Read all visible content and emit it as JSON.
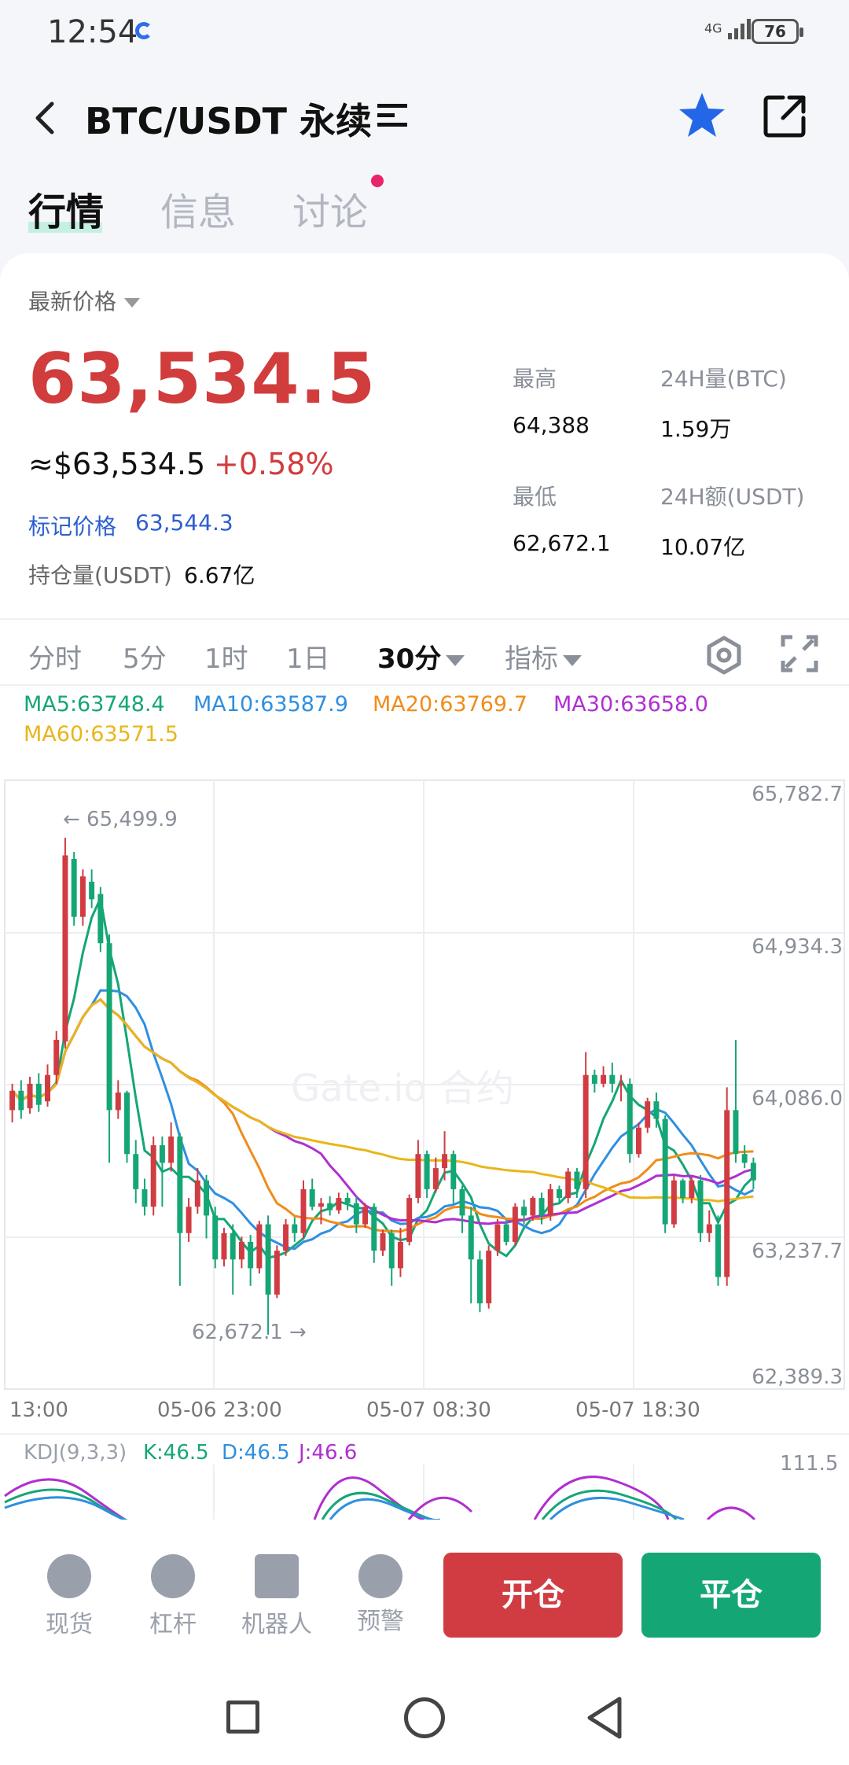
{
  "status_bar": {
    "time": "12:54",
    "network": "4G",
    "battery": "76"
  },
  "header": {
    "title": "BTC/USDT 永续",
    "favorited": true
  },
  "tabs": [
    {
      "label": "行情",
      "active": true
    },
    {
      "label": "信息",
      "active": false
    },
    {
      "label": "讨论",
      "active": false,
      "has_dot": true
    }
  ],
  "price": {
    "label": "最新价格",
    "last": "63,534.5",
    "usd": "≈$63,534.5",
    "change": "+0.58%",
    "mark_label": "标记价格",
    "mark_value": "63,544.3",
    "open_interest_label": "持仓量(USDT)",
    "open_interest_value": "6.67亿"
  },
  "stats": {
    "high_label": "最高",
    "high_value": "64,388",
    "vol_btc_label": "24H量(BTC)",
    "vol_btc_value": "1.59万",
    "low_label": "最低",
    "low_value": "62,672.1",
    "vol_usdt_label": "24H额(USDT)",
    "vol_usdt_value": "10.07亿"
  },
  "intervals": [
    {
      "label": "分时",
      "active": false
    },
    {
      "label": "5分",
      "active": false
    },
    {
      "label": "1时",
      "active": false
    },
    {
      "label": "1日",
      "active": false
    },
    {
      "label": "30分",
      "active": true
    },
    {
      "label": "指标",
      "active": false
    }
  ],
  "ma": {
    "ma5": "MA5:63748.4",
    "ma10": "MA10:63587.9",
    "ma20": "MA20:63769.7",
    "ma30": "MA30:63658.0",
    "ma60": "MA60:63571.5"
  },
  "colors": {
    "up": "#d03c42",
    "down": "#15a676",
    "ma5": "#15a676",
    "ma10": "#2f8fe0",
    "ma20": "#f08c1a",
    "ma30": "#b02fd0",
    "ma60": "#e8b61a"
  },
  "chart": {
    "watermark": "Gate.io 合约",
    "max_marker": "← 65,499.9",
    "min_marker": "62,672.1 →",
    "y_ticks": [
      "65,782.7",
      "64,934.3",
      "64,086.0",
      "63,237.7",
      "62,389.3"
    ],
    "x_ticks": [
      "13:00",
      "05-06 23:00",
      "05-07 08:30",
      "05-07 18:30"
    ]
  },
  "kdj": {
    "label": "KDJ(9,3,3)",
    "k": "K:46.5",
    "d": "D:46.5",
    "j": "J:46.6",
    "top_tick": "111.5"
  },
  "chart_data": {
    "type": "candlestick",
    "interval": "30分",
    "ylim": [
      62389.3,
      65782.7
    ],
    "high_marker": 65499.9,
    "low_marker": 62672.1,
    "candles": [
      [
        63950,
        64060,
        63880,
        64100
      ],
      [
        64060,
        63950,
        63900,
        64120
      ],
      [
        63960,
        64100,
        63930,
        64140
      ],
      [
        64100,
        63980,
        63940,
        64160
      ],
      [
        64000,
        64150,
        63970,
        64210
      ],
      [
        64150,
        64350,
        64100,
        64400
      ],
      [
        64340,
        65400,
        64300,
        65499.9
      ],
      [
        65380,
        65050,
        65000,
        65420
      ],
      [
        65050,
        65280,
        65000,
        65320
      ],
      [
        65250,
        65150,
        65100,
        65320
      ],
      [
        65180,
        64900,
        64850,
        65220
      ],
      [
        64900,
        63950,
        63650,
        64950
      ],
      [
        63950,
        64050,
        63900,
        64120
      ],
      [
        64050,
        63700,
        63650,
        64060
      ],
      [
        63700,
        63500,
        63420,
        63780
      ],
      [
        63500,
        63400,
        63350,
        63560
      ],
      [
        63400,
        63750,
        63350,
        63800
      ],
      [
        63750,
        63650,
        63400,
        63800
      ],
      [
        63650,
        63800,
        63600,
        63880
      ],
      [
        63800,
        63250,
        62950,
        63820
      ],
      [
        63250,
        63400,
        63200,
        63450
      ],
      [
        63400,
        63550,
        63360,
        63620
      ],
      [
        63550,
        63350,
        63220,
        63580
      ],
      [
        63350,
        63100,
        63050,
        63400
      ],
      [
        63100,
        63250,
        63060,
        63280
      ],
      [
        63250,
        63100,
        62900,
        63300
      ],
      [
        63100,
        63200,
        63050,
        63230
      ],
      [
        63200,
        63050,
        62950,
        63240
      ],
      [
        63050,
        63300,
        63020,
        63320
      ],
      [
        63300,
        62900,
        62672.1,
        63350
      ],
      [
        62900,
        63150,
        62880,
        63180
      ],
      [
        63150,
        63300,
        63120,
        63330
      ],
      [
        63300,
        63250,
        63200,
        63340
      ],
      [
        63250,
        63500,
        63220,
        63550
      ],
      [
        63500,
        63400,
        63380,
        63560
      ],
      [
        63400,
        63420,
        63300,
        63450
      ],
      [
        63420,
        63380,
        63350,
        63460
      ],
      [
        63380,
        63450,
        63360,
        63480
      ],
      [
        63450,
        63420,
        63380,
        63480
      ],
      [
        63420,
        63300,
        63250,
        63460
      ],
      [
        63300,
        63400,
        63280,
        63420
      ],
      [
        63400,
        63150,
        63080,
        63420
      ],
      [
        63150,
        63250,
        63120,
        63270
      ],
      [
        63250,
        63050,
        62950,
        63270
      ],
      [
        63050,
        63200,
        63000,
        63280
      ],
      [
        63200,
        63450,
        63180,
        63470
      ],
      [
        63450,
        63700,
        63420,
        63780
      ],
      [
        63700,
        63500,
        63450,
        63720
      ],
      [
        63500,
        63620,
        63480,
        63680
      ],
      [
        63620,
        63700,
        63550,
        63830
      ],
      [
        63700,
        63500,
        63420,
        63720
      ],
      [
        63500,
        63350,
        63250,
        63520
      ],
      [
        63350,
        63100,
        62850,
        63400
      ],
      [
        63100,
        62850,
        62800,
        63150
      ],
      [
        62850,
        63150,
        62820,
        63180
      ],
      [
        63150,
        63300,
        63120,
        63330
      ],
      [
        63300,
        63200,
        63180,
        63320
      ],
      [
        63200,
        63400,
        63180,
        63420
      ],
      [
        63400,
        63350,
        63300,
        63440
      ],
      [
        63350,
        63450,
        63320,
        63460
      ],
      [
        63450,
        63350,
        63300,
        63480
      ],
      [
        63350,
        63500,
        63320,
        63530
      ],
      [
        63500,
        63450,
        63420,
        63520
      ],
      [
        63450,
        63600,
        63420,
        63620
      ],
      [
        63600,
        63500,
        63450,
        63620
      ],
      [
        63500,
        64150,
        63450,
        64280
      ],
      [
        64150,
        64100,
        64050,
        64180
      ],
      [
        64100,
        64150,
        64080,
        64200
      ],
      [
        64150,
        64100,
        64050,
        64220
      ],
      [
        64100,
        64100,
        64000,
        64150
      ],
      [
        64100,
        63700,
        63650,
        64130
      ],
      [
        63700,
        63850,
        63680,
        63880
      ],
      [
        63850,
        64000,
        63820,
        64020
      ],
      [
        64000,
        63900,
        63850,
        64050
      ],
      [
        63900,
        63300,
        63250,
        63920
      ],
      [
        63300,
        63550,
        63280,
        63580
      ],
      [
        63550,
        63450,
        63420,
        63560
      ],
      [
        63450,
        63550,
        63420,
        63570
      ],
      [
        63550,
        63250,
        63200,
        63580
      ],
      [
        63250,
        63300,
        63200,
        63380
      ],
      [
        63300,
        63000,
        62950,
        63350
      ],
      [
        63000,
        63950,
        62950,
        64080
      ],
      [
        63950,
        63700,
        63650,
        64350
      ],
      [
        63700,
        63650,
        63620,
        63750
      ],
      [
        63650,
        63550,
        63500,
        63680
      ]
    ]
  }
}
